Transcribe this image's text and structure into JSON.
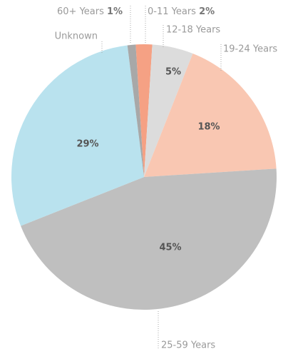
{
  "chart_data": {
    "type": "pie",
    "categories": [
      "0-11 Years",
      "12-18 Years",
      "19-24 Years",
      "25-59 Years",
      "Unknown",
      "60+ Years"
    ],
    "values": [
      2,
      5,
      18,
      45,
      29,
      1
    ],
    "value_labels": [
      "2%",
      "5%",
      "18%",
      "45%",
      "29%",
      "1%"
    ],
    "colors": [
      "#f5a184",
      "#dcdcdc",
      "#f9c7b2",
      "#bfbfbf",
      "#b9e2ee",
      "#a8a8a8"
    ]
  }
}
